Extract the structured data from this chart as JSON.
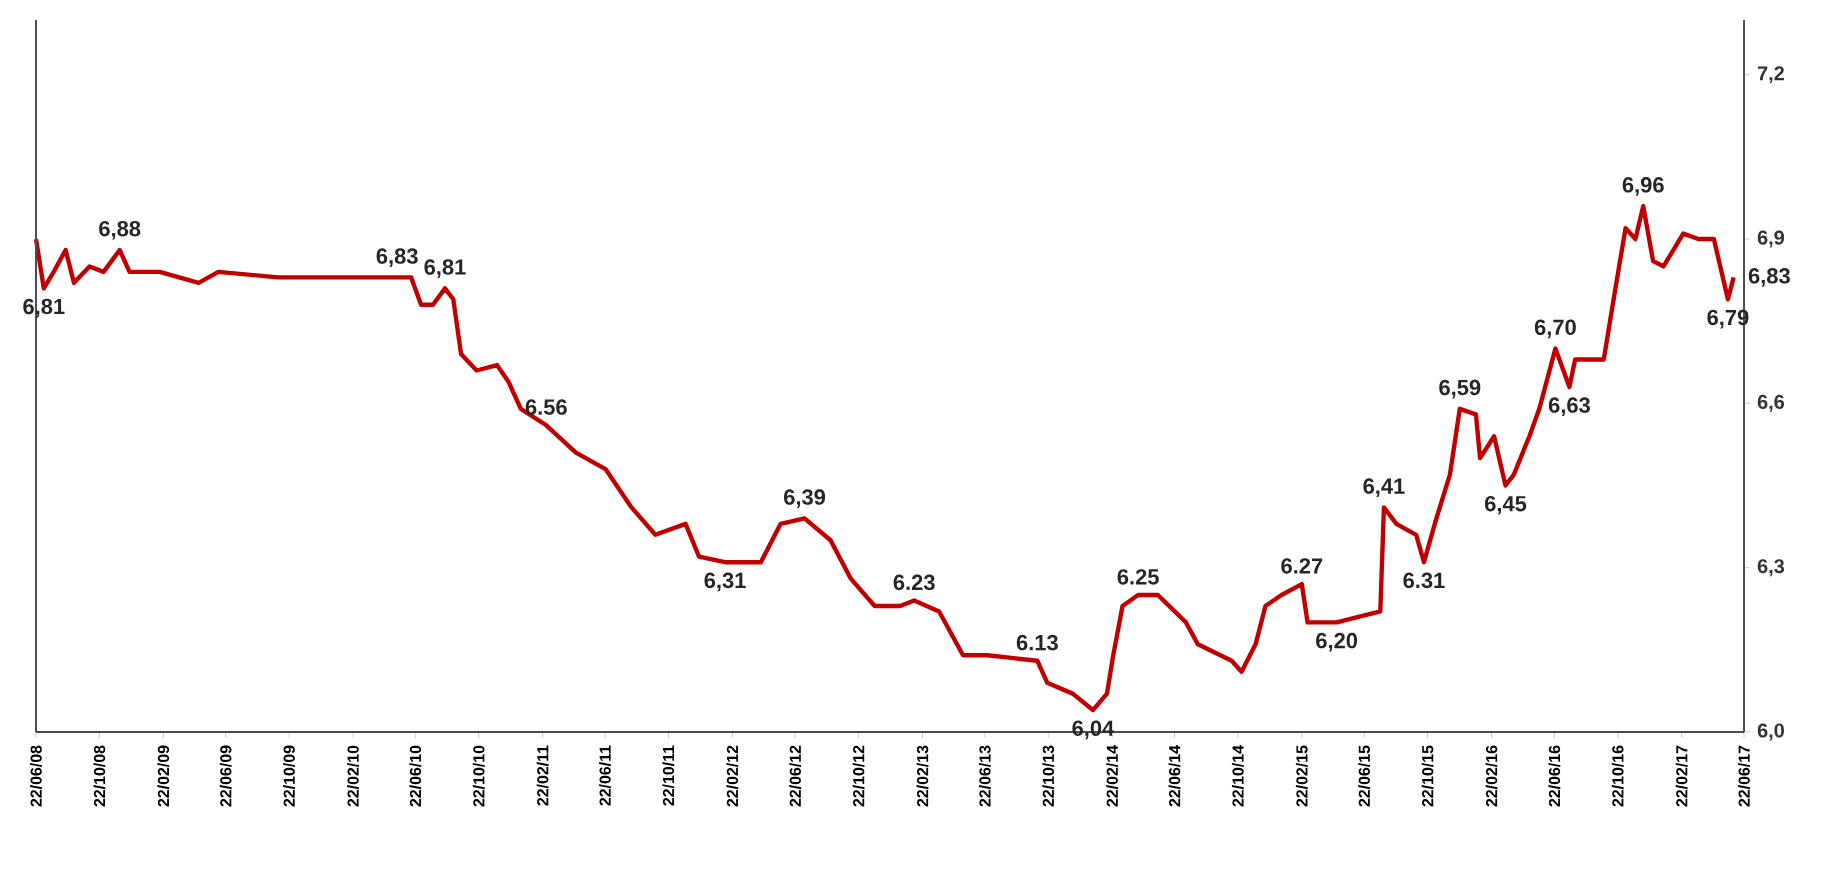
{
  "chart_data": {
    "type": "line",
    "color": "#c00000",
    "x": [
      "2008-06-22",
      "2008-07-07",
      "2008-07-26",
      "2008-08-18",
      "2008-09-03",
      "2008-10-03",
      "2008-10-30",
      "2008-11-30",
      "2008-12-19",
      "2009-02-15",
      "2009-05-01",
      "2009-06-08",
      "2009-10-01",
      "2010-05-18",
      "2010-06-14",
      "2010-07-03",
      "2010-07-26",
      "2010-08-18",
      "2010-09-03",
      "2010-09-18",
      "2010-10-18",
      "2010-11-26",
      "2010-12-18",
      "2011-01-11",
      "2011-03-01",
      "2011-04-27",
      "2011-06-23",
      "2011-08-12",
      "2011-09-27",
      "2011-11-24",
      "2011-12-20",
      "2012-02-08",
      "2012-04-17",
      "2012-05-25",
      "2012-07-10",
      "2012-08-29",
      "2012-10-07",
      "2012-11-22",
      "2013-01-10",
      "2013-02-06",
      "2013-03-26",
      "2013-05-11",
      "2013-06-27",
      "2013-10-01",
      "2013-10-20",
      "2013-12-08",
      "2014-01-16",
      "2014-02-12",
      "2014-02-24",
      "2014-03-14",
      "2014-04-13",
      "2014-05-21",
      "2014-07-14",
      "2014-08-06",
      "2014-10-10",
      "2014-10-29",
      "2014-11-25",
      "2014-12-14",
      "2015-01-14",
      "2015-02-22",
      "2015-03-05",
      "2015-04-30",
      "2015-07-23",
      "2015-07-30",
      "2015-08-23",
      "2015-09-30",
      "2015-10-15",
      "2015-11-08",
      "2015-12-04",
      "2015-12-23",
      "2016-01-23",
      "2016-01-31",
      "2016-02-27",
      "2016-03-20",
      "2016-04-05",
      "2016-05-05",
      "2016-05-24",
      "2016-06-24",
      "2016-07-21",
      "2016-08-01",
      "2016-09-25",
      "2016-10-14",
      "2016-11-06",
      "2016-11-25",
      "2016-12-10",
      "2016-12-29",
      "2017-01-18",
      "2017-02-25",
      "2017-03-26",
      "2017-04-25",
      "2017-05-22",
      "2017-06-02"
    ],
    "values": [
      6.9,
      6.81,
      6.84,
      6.88,
      6.82,
      6.85,
      6.84,
      6.88,
      6.84,
      6.84,
      6.82,
      6.84,
      6.83,
      6.83,
      6.83,
      6.78,
      6.78,
      6.81,
      6.79,
      6.69,
      6.66,
      6.67,
      6.64,
      6.59,
      6.56,
      6.51,
      6.48,
      6.41,
      6.36,
      6.38,
      6.32,
      6.31,
      6.31,
      6.38,
      6.39,
      6.35,
      6.28,
      6.23,
      6.23,
      6.24,
      6.22,
      6.14,
      6.14,
      6.13,
      6.09,
      6.07,
      6.04,
      6.07,
      6.14,
      6.23,
      6.25,
      6.25,
      6.2,
      6.16,
      6.13,
      6.11,
      6.16,
      6.23,
      6.25,
      6.27,
      6.2,
      6.2,
      6.22,
      6.41,
      6.38,
      6.36,
      6.31,
      6.39,
      6.47,
      6.59,
      6.58,
      6.5,
      6.54,
      6.45,
      6.47,
      6.54,
      6.59,
      6.7,
      6.63,
      6.68,
      6.68,
      6.79,
      6.92,
      6.9,
      6.96,
      6.86,
      6.85,
      6.91,
      6.9,
      6.9,
      6.79,
      6.83
    ],
    "annotations": [
      {
        "text": "6,81",
        "x": "2008-07-07",
        "y": 6.81
      },
      {
        "text": "6,88",
        "x": "2008-11-30",
        "y": 6.88
      },
      {
        "text": "6,83",
        "x": "2010-05-18",
        "y": 6.83
      },
      {
        "text": "6,81",
        "x": "2010-08-18",
        "y": 6.81
      },
      {
        "text": "6.56",
        "x": "2011-03-01",
        "y": 6.56
      },
      {
        "text": "6,31",
        "x": "2012-02-08",
        "y": 6.31
      },
      {
        "text": "6,39",
        "x": "2012-07-10",
        "y": 6.39
      },
      {
        "text": "6.23",
        "x": "2013-02-06",
        "y": 6.24
      },
      {
        "text": "6.13",
        "x": "2013-10-01",
        "y": 6.13
      },
      {
        "text": "6,04",
        "x": "2014-01-16",
        "y": 6.04
      },
      {
        "text": "6.25",
        "x": "2014-04-13",
        "y": 6.25
      },
      {
        "text": "6.27",
        "x": "2015-02-22",
        "y": 6.27
      },
      {
        "text": "6,20",
        "x": "2015-04-30",
        "y": 6.2
      },
      {
        "text": "6,41",
        "x": "2015-07-30",
        "y": 6.41
      },
      {
        "text": "6.31",
        "x": "2015-10-15",
        "y": 6.31
      },
      {
        "text": "6,59",
        "x": "2015-12-23",
        "y": 6.59
      },
      {
        "text": "6,45",
        "x": "2016-03-20",
        "y": 6.45
      },
      {
        "text": "6,70",
        "x": "2016-06-24",
        "y": 6.7
      },
      {
        "text": "6,63",
        "x": "2016-07-21",
        "y": 6.63
      },
      {
        "text": "6,96",
        "x": "2016-12-10",
        "y": 6.96
      },
      {
        "text": "6,79",
        "x": "2017-05-22",
        "y": 6.79
      },
      {
        "text": "6,83",
        "x": "2017-06-02",
        "y": 6.83
      }
    ],
    "xlim": [
      "2008-06-22",
      "2017-06-22"
    ],
    "xticks": [
      {
        "value": "2008-06-22",
        "label": "22/06/08"
      },
      {
        "value": "2008-10-22",
        "label": "22/10/08"
      },
      {
        "value": "2009-02-22",
        "label": "22/02/09"
      },
      {
        "value": "2009-06-22",
        "label": "22/06/09"
      },
      {
        "value": "2009-10-22",
        "label": "22/10/09"
      },
      {
        "value": "2010-02-22",
        "label": "22/02/10"
      },
      {
        "value": "2010-06-22",
        "label": "22/06/10"
      },
      {
        "value": "2010-10-22",
        "label": "22/10/10"
      },
      {
        "value": "2011-02-22",
        "label": "22/02/11"
      },
      {
        "value": "2011-06-22",
        "label": "22/06/11"
      },
      {
        "value": "2011-10-22",
        "label": "22/10/11"
      },
      {
        "value": "2012-02-22",
        "label": "22/02/12"
      },
      {
        "value": "2012-06-22",
        "label": "22/06/12"
      },
      {
        "value": "2012-10-22",
        "label": "22/10/12"
      },
      {
        "value": "2013-02-22",
        "label": "22/02/13"
      },
      {
        "value": "2013-06-22",
        "label": "22/06/13"
      },
      {
        "value": "2013-10-22",
        "label": "22/10/13"
      },
      {
        "value": "2014-02-22",
        "label": "22/02/14"
      },
      {
        "value": "2014-06-22",
        "label": "22/06/14"
      },
      {
        "value": "2014-10-22",
        "label": "22/10/14"
      },
      {
        "value": "2015-02-22",
        "label": "22/02/15"
      },
      {
        "value": "2015-06-22",
        "label": "22/06/15"
      },
      {
        "value": "2015-10-22",
        "label": "22/10/15"
      },
      {
        "value": "2016-02-22",
        "label": "22/02/16"
      },
      {
        "value": "2016-06-22",
        "label": "22/06/16"
      },
      {
        "value": "2016-10-22",
        "label": "22/10/16"
      },
      {
        "value": "2017-02-22",
        "label": "22/02/17"
      },
      {
        "value": "2017-06-22",
        "label": "22/06/17"
      }
    ],
    "ylim": [
      6.0,
      7.3
    ],
    "yticks": [
      {
        "value": 6.0,
        "label": "6,0"
      },
      {
        "value": 6.3,
        "label": "6,3"
      },
      {
        "value": 6.6,
        "label": "6,6"
      },
      {
        "value": 6.9,
        "label": "6,9"
      },
      {
        "value": 7.2,
        "label": "7,2"
      }
    ]
  }
}
